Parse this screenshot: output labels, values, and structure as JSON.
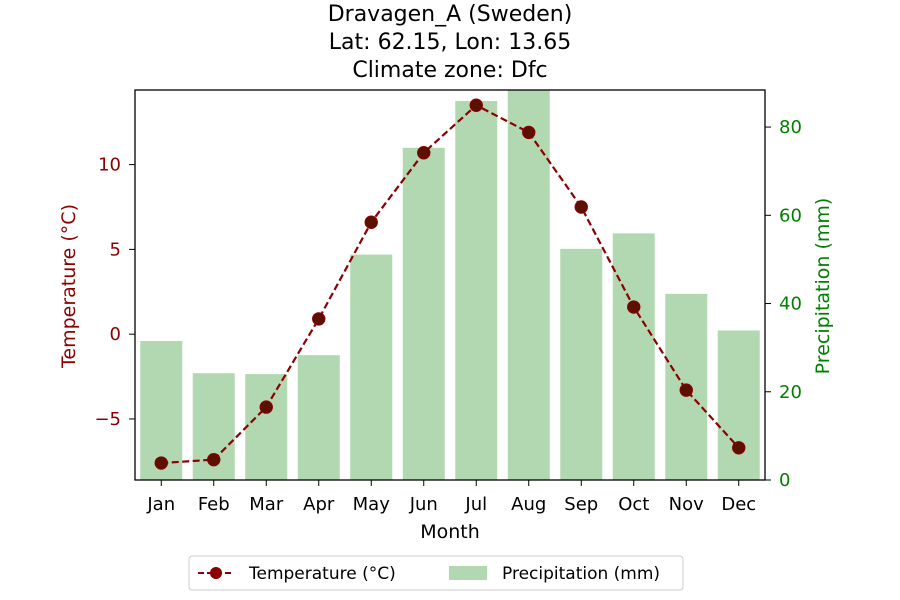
{
  "chart_data": {
    "type": "bar+line",
    "title_lines": [
      "Dravagen_A (Sweden)",
      "Lat: 62.15, Lon: 13.65",
      "Climate zone: Dfc"
    ],
    "xlabel": "Month",
    "categories": [
      "Jan",
      "Feb",
      "Mar",
      "Apr",
      "May",
      "Jun",
      "Jul",
      "Aug",
      "Sep",
      "Oct",
      "Nov",
      "Dec"
    ],
    "series": [
      {
        "name": "Temperature (°C)",
        "kind": "line",
        "axis": "left",
        "color": "#8b0000",
        "values": [
          -7.6,
          -7.4,
          -4.3,
          0.9,
          6.6,
          10.7,
          13.5,
          11.9,
          7.5,
          1.6,
          -3.3,
          -6.7
        ]
      },
      {
        "name": "Precipitation (mm)",
        "kind": "bar",
        "axis": "right",
        "color": "#b2d8b2",
        "values": [
          31.5,
          24.2,
          24.0,
          28.3,
          51.1,
          75.3,
          85.9,
          88.4,
          52.4,
          55.9,
          42.2,
          33.9
        ]
      }
    ],
    "y_left": {
      "label": "Temperature (°C)",
      "color": "#8b0000",
      "lim": [
        -8.6,
        14.4
      ],
      "ticks": [
        -5,
        0,
        5,
        10
      ],
      "tick_labels": [
        "−5",
        "0",
        "5",
        "10"
      ]
    },
    "y_right": {
      "label": "Precipitation (mm)",
      "color": "#008000",
      "lim": [
        0,
        88.4
      ],
      "ticks": [
        0,
        20,
        40,
        60,
        80
      ],
      "tick_labels": [
        "0",
        "20",
        "40",
        "60",
        "80"
      ]
    },
    "grid": false,
    "legend_placement": "bottom-center"
  }
}
